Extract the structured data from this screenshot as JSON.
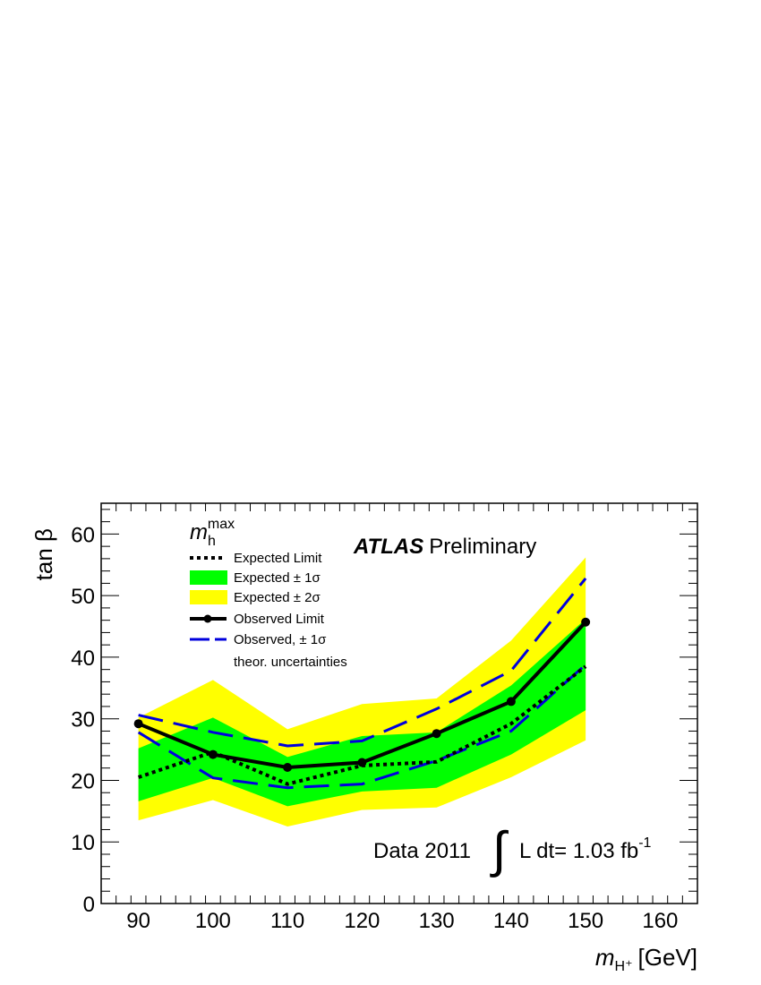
{
  "chart_data": {
    "type": "line",
    "x": [
      90,
      100,
      110,
      120,
      130,
      140,
      150
    ],
    "xlim": [
      85,
      165
    ],
    "ylim": [
      0,
      65
    ],
    "x_ticks": [
      "90",
      "100",
      "110",
      "120",
      "130",
      "140",
      "150",
      "160"
    ],
    "y_ticks": [
      "0",
      "10",
      "20",
      "30",
      "40",
      "50",
      "60"
    ],
    "xlabel_var": "m",
    "xlabel_sub": "H⁺",
    "xlabel_unit": "[GeV]",
    "ylabel": "tan β",
    "grid": false,
    "legend_position": "top-left",
    "bands": [
      {
        "name": "Expected ± 2σ",
        "color": "#ffff00",
        "lower": [
          13.5,
          16.8,
          12.5,
          15.2,
          15.6,
          20.5,
          26.5
        ],
        "upper": [
          30.2,
          36.3,
          28.3,
          32.4,
          33.3,
          42.7,
          56.2
        ]
      },
      {
        "name": "Expected ± 1σ",
        "color": "#00ff00",
        "lower": [
          16.6,
          20.4,
          15.8,
          18.2,
          18.8,
          24.2,
          31.4
        ],
        "upper": [
          25.2,
          30.2,
          23.8,
          27.2,
          27.8,
          35.4,
          46.2
        ]
      }
    ],
    "series": [
      {
        "name": "Expected Limit",
        "style": "dotted",
        "color": "#000000",
        "values": [
          20.5,
          24.6,
          19.4,
          22.4,
          23.0,
          29.2,
          38.5
        ]
      },
      {
        "name": "Observed Limit",
        "style": "solid-markers",
        "color": "#000000",
        "values": [
          29.2,
          24.2,
          22.1,
          22.9,
          27.6,
          32.8,
          45.7
        ]
      },
      {
        "name": "Observed, ± 1σ",
        "style": "dashed",
        "color": "#0000dd",
        "values": [
          30.6,
          27.8,
          25.6,
          26.4,
          31.6,
          37.8,
          52.8
        ]
      },
      {
        "name": "Observed, ± 1σ (lower)",
        "style": "dashed",
        "color": "#0000dd",
        "values": [
          27.8,
          20.4,
          18.8,
          19.4,
          23.2,
          28.0,
          38.8
        ]
      }
    ],
    "legend": {
      "header_var": "m",
      "header_sub": "h",
      "header_sup": "max",
      "entries": [
        {
          "label": "Expected Limit",
          "key": "dotted"
        },
        {
          "label": "Expected ± 1σ",
          "key": "band1"
        },
        {
          "label": "Expected ± 2σ",
          "key": "band2"
        },
        {
          "label": "Observed Limit",
          "key": "observed"
        },
        {
          "label": "Observed, ± 1σ",
          "key": "dashed"
        }
      ],
      "extra_line": "theor. uncertainties"
    },
    "annotation_atlas_bold": "ATLAS",
    "annotation_atlas_rest": "Preliminary",
    "annotation_data": "Data 2011",
    "annotation_lumi_integral": "∫",
    "annotation_lumi_text": "L dt= 1.03 fb",
    "annotation_lumi_exp": "-1"
  }
}
